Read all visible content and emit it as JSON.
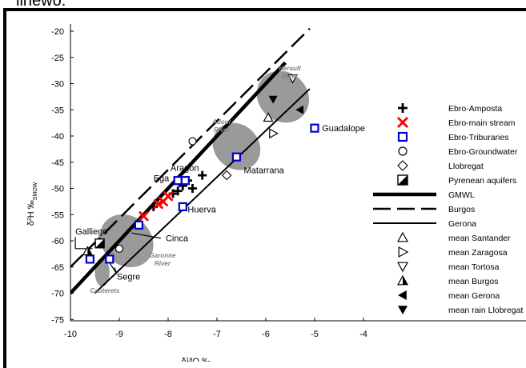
{
  "caption": "linewo.",
  "chart_data": {
    "type": "scatter",
    "xlabel": "δ18O ‰",
    "ylabel": "δ2H ‰SMOW",
    "xlim": [
      -10,
      -3.5
    ],
    "ylim": [
      -75,
      -18
    ],
    "xticks": [
      -10,
      -9,
      -8,
      -7,
      -6,
      -5,
      -4
    ],
    "yticks": [
      -20,
      -25,
      -30,
      -35,
      -40,
      -45,
      -50,
      -55,
      -60,
      -65,
      -70,
      -75
    ],
    "grid": false,
    "legend_position": "right",
    "lines": [
      {
        "name": "GMWL",
        "style": "thick",
        "points": [
          [
            -10,
            -70
          ],
          [
            -5.6,
            -26
          ]
        ]
      },
      {
        "name": "Burgos",
        "style": "dashed",
        "points": [
          [
            -10,
            -65
          ],
          [
            -5.1,
            -19.5
          ]
        ]
      },
      {
        "name": "Gerona",
        "style": "solid",
        "points": [
          [
            -9.5,
            -70
          ],
          [
            -5.1,
            -31
          ]
        ]
      }
    ],
    "series": [
      {
        "name": "Ebro-Amposta",
        "marker": "plus",
        "color": "#000000",
        "points": [
          [
            -8.3,
            -53.5
          ],
          [
            -7.9,
            -51
          ],
          [
            -7.8,
            -50.5
          ],
          [
            -7.7,
            -49.5
          ],
          [
            -7.5,
            -50
          ],
          [
            -7.6,
            -48.5
          ],
          [
            -7.3,
            -47.5
          ]
        ]
      },
      {
        "name": "Ebro-main stream",
        "marker": "x",
        "color": "#ff0000",
        "points": [
          [
            -8.5,
            -55.3
          ],
          [
            -8.2,
            -53
          ],
          [
            -8.1,
            -52.5
          ],
          [
            -8.0,
            -51.5
          ]
        ]
      },
      {
        "name": "Ebro-Triburaries",
        "marker": "square",
        "color": "#0000cc",
        "points": [
          [
            -9.6,
            -63.5
          ],
          [
            -9.2,
            -63.5
          ],
          [
            -8.6,
            -57
          ],
          [
            -7.8,
            -48.5
          ],
          [
            -7.65,
            -48.5
          ],
          [
            -7.7,
            -53.5
          ],
          [
            -6.6,
            -44
          ],
          [
            -5.0,
            -38.5
          ]
        ]
      },
      {
        "name": "Ebro-Groundwater",
        "marker": "circle",
        "color": "#000000",
        "points": [
          [
            -7.5,
            -41
          ],
          [
            -9.0,
            -61.5
          ]
        ]
      },
      {
        "name": "Llobregat",
        "marker": "diamond",
        "color": "#000000",
        "points": [
          [
            -6.8,
            -47.5
          ]
        ]
      },
      {
        "name": "Pyrenean aquifers",
        "marker": "halfsquare",
        "color": "#000000",
        "points": [
          [
            -9.4,
            -60.5
          ]
        ]
      },
      {
        "name": "mean Santander",
        "marker": "triangle-up",
        "color": "#000000",
        "points": [
          [
            -5.95,
            -36.5
          ]
        ]
      },
      {
        "name": "mean Zaragosa",
        "marker": "triangle-right",
        "color": "#000000",
        "points": [
          [
            -5.85,
            -39.5
          ]
        ]
      },
      {
        "name": "mean Tortosa",
        "marker": "triangle-down",
        "color": "#000000",
        "points": [
          [
            -5.45,
            -29
          ]
        ]
      },
      {
        "name": "mean Burgos",
        "marker": "triangle-up-half",
        "color": "#000000",
        "points": [
          [
            -9.65,
            -62
          ]
        ]
      },
      {
        "name": "mean Gerona",
        "marker": "triangle-left",
        "color": "#000000",
        "points": [
          [
            -5.3,
            -35
          ]
        ]
      },
      {
        "name": "mean rain Llobregat",
        "marker": "triangle-down-filled",
        "color": "#000000",
        "points": [
          [
            -5.85,
            -33
          ]
        ]
      }
    ],
    "regions": [
      {
        "label": "Herault River",
        "cx": -5.65,
        "cy": -32.5,
        "rx": 0.5,
        "ry": 2.5,
        "angle": -47
      },
      {
        "label": "Adour River",
        "cx": -6.6,
        "cy": -42,
        "rx": 0.45,
        "ry": 2.3,
        "angle": -47
      },
      {
        "label": "Garonne River",
        "cx": -8.85,
        "cy": -60,
        "rx": 0.5,
        "ry": 2.6,
        "angle": -47
      },
      {
        "label": "Cauterets",
        "cx": -9.35,
        "cy": -66,
        "rx": 0.15,
        "ry": 1.3,
        "angle": 0
      }
    ],
    "annotations": [
      {
        "text": "Guadalope",
        "x": -4.85,
        "y": -38.5
      },
      {
        "text": "Matarrana",
        "x": -6.45,
        "y": -46.5
      },
      {
        "text": "Ega",
        "x": -8.3,
        "y": -48
      },
      {
        "text": "Aragon",
        "x": -7.95,
        "y": -46
      },
      {
        "text": "Huerva",
        "x": -7.6,
        "y": -54
      },
      {
        "text": "Cinca",
        "x": -8.05,
        "y": -59.5
      },
      {
        "text": "Segre",
        "x": -9.05,
        "y": -66.8
      },
      {
        "text": "Galliego",
        "x": -9.9,
        "y": -58.2
      }
    ],
    "pointer_lines": [
      [
        [
          -8.15,
          -59.5
        ],
        [
          -8.75,
          -58.5
        ]
      ],
      [
        [
          -9.05,
          -66.3
        ],
        [
          -9.1,
          -65.1
        ]
      ],
      [
        [
          -9.05,
          -66.3
        ],
        [
          -9.2,
          -64.2
        ]
      ],
      [
        [
          -9.9,
          -59.3
        ],
        [
          -9.9,
          -61.5
        ]
      ],
      [
        [
          -9.9,
          -61.5
        ],
        [
          -9.55,
          -61.5
        ]
      ]
    ]
  }
}
